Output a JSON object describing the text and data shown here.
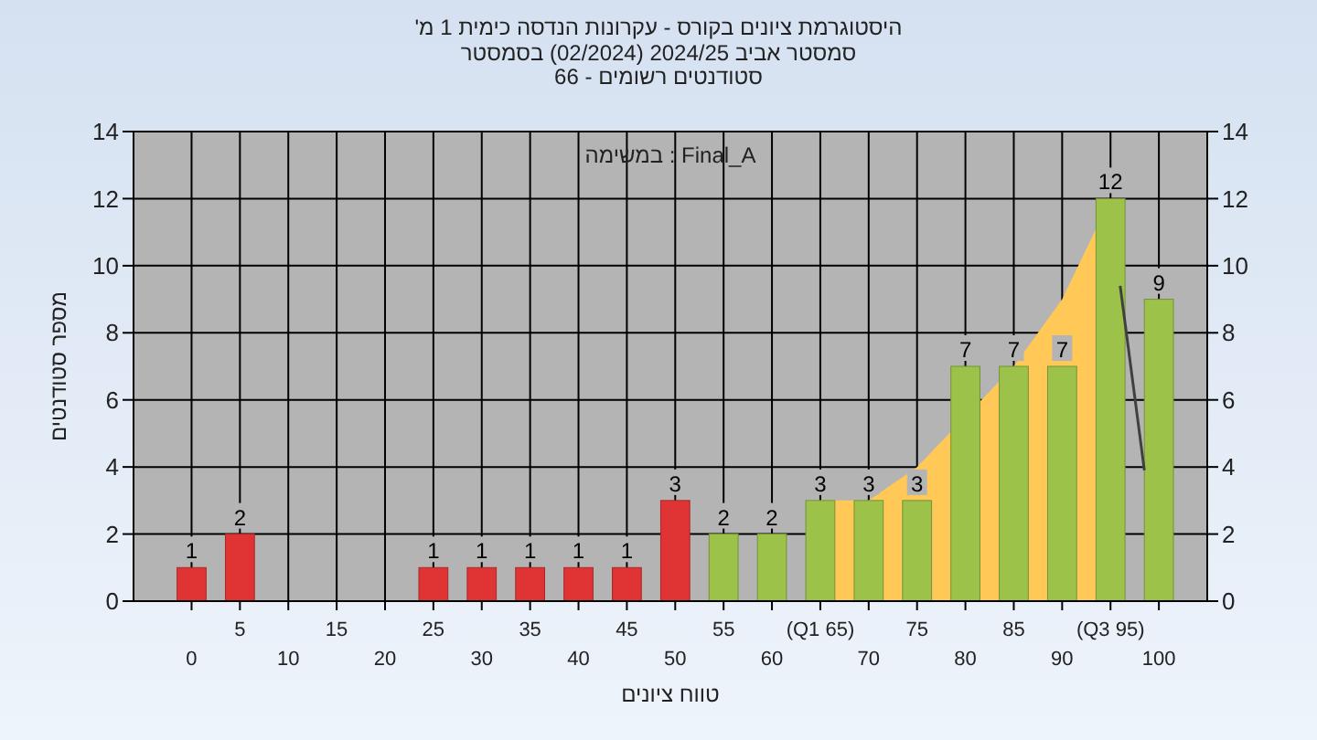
{
  "chart_data": {
    "type": "bar",
    "title": "היסטוגרמת ציונים בקורס - עקרונות הנדסה כימית 1 מ'",
    "subtitle": "סמסטר אביב 2024/25 (02/2024) בסמסטר\nסטודנטים רשומים - 66",
    "xlabel": "טווח ציונים",
    "ylabel": "מספר סטודנטים",
    "annotations": [
      "במשימה : Final_A"
    ],
    "x": [
      0,
      5,
      10,
      15,
      20,
      25,
      30,
      35,
      40,
      45,
      50,
      55,
      60,
      65,
      70,
      75,
      80,
      85,
      90,
      95,
      100
    ],
    "xlim": [
      -6,
      105
    ],
    "xticks": [
      0,
      10,
      20,
      30,
      40,
      50,
      60,
      70,
      80,
      90,
      100
    ],
    "x2lim": [
      -6,
      105
    ],
    "x2ticks": [
      5,
      15,
      25,
      35,
      45,
      55,
      {
        "value": 65,
        "label": "(Q1 65)"
      },
      75,
      85,
      {
        "value": 95,
        "label": "(Q3 95)"
      }
    ],
    "ylim": [
      0,
      14
    ],
    "yticks": [
      0,
      2,
      4,
      6,
      8,
      10,
      12,
      14
    ],
    "y2lim": [
      0,
      14
    ],
    "y2ticks": [
      0,
      2,
      4,
      6,
      8,
      10,
      12,
      14
    ],
    "grid": true,
    "series": [
      {
        "type": "area",
        "color": "#ffc857",
        "x": [
          65,
          70,
          75,
          80,
          85,
          90,
          95
        ],
        "values": [
          3,
          3,
          4,
          null,
          7,
          9,
          12
        ]
      },
      {
        "colors": [
          "#e03434",
          "#e03434",
          "#e03434",
          "#e03434",
          "#e03434",
          "#e03434",
          "#e03434",
          "#e03434",
          "#e03434",
          "#e03434",
          "#e03434",
          "#9cc24a",
          "#9cc24a",
          "#9cc24a",
          "#9cc24a",
          "#9cc24a",
          "#9cc24a",
          "#9cc24a",
          "#9cc24a",
          "#9cc24a",
          "#9cc24a"
        ],
        "values": [
          1,
          2,
          0,
          0,
          0,
          1,
          1,
          1,
          1,
          1,
          3,
          2,
          2,
          3,
          3,
          3,
          7,
          7,
          7,
          12,
          9
        ],
        "value_labels": [
          "1",
          "2",
          null,
          null,
          null,
          "1",
          "1",
          "1",
          "1",
          "1",
          "3",
          "2",
          "2",
          "3",
          "3",
          "3",
          "7",
          "7",
          "7",
          "12",
          "9"
        ]
      },
      {
        "type": "line",
        "color": "#404040",
        "x": [
          96,
          98.5
        ],
        "values": [
          9.4,
          3.9
        ]
      }
    ]
  }
}
